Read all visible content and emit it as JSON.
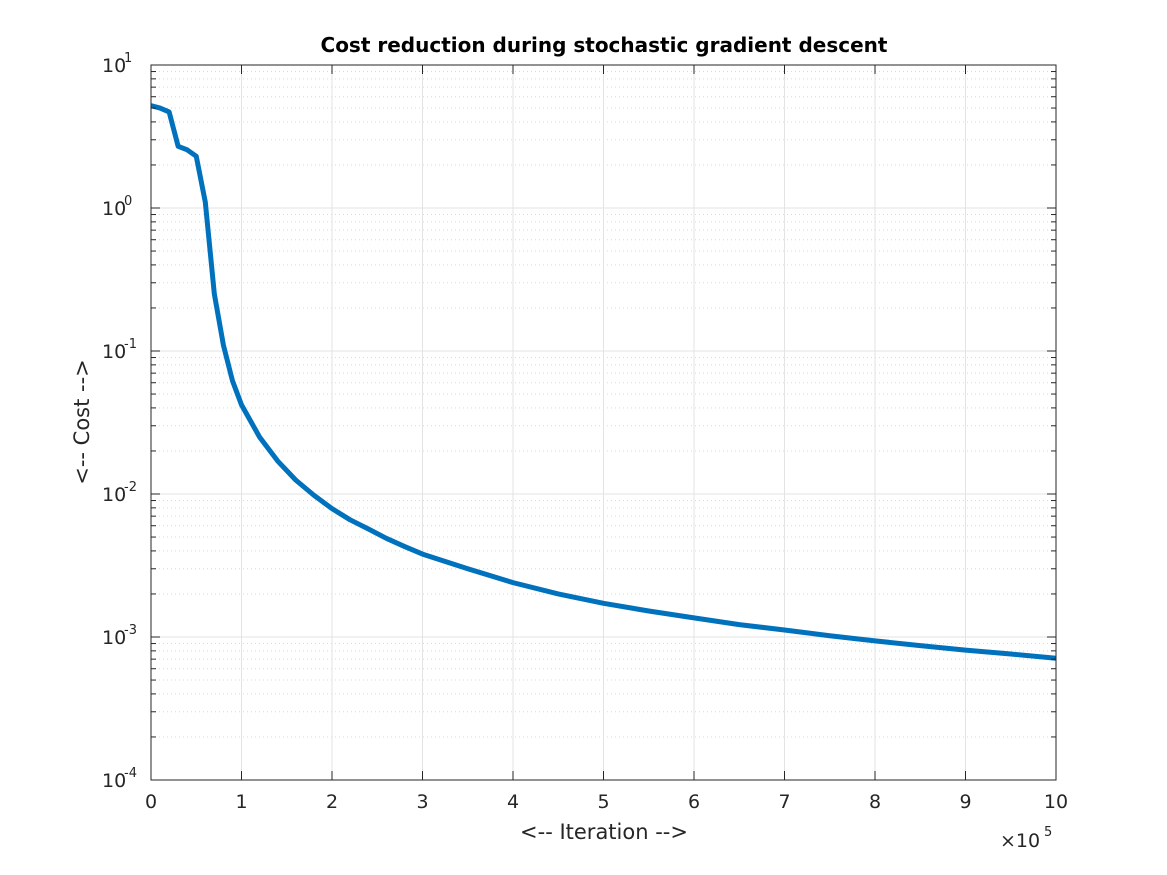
{
  "chart_data": {
    "type": "line",
    "title": "Cost reduction during stochastic gradient descent",
    "xlabel": "<-- Iteration -->",
    "ylabel": "<-- Cost -->",
    "x_multiplier_label": {
      "base": "×10",
      "exp": "5"
    },
    "xlim": [
      0,
      10
    ],
    "ylim": [
      0.0001,
      10
    ],
    "yscale": "log",
    "grid": true,
    "minor_grid": true,
    "x_ticks": [
      "0",
      "1",
      "2",
      "3",
      "4",
      "5",
      "6",
      "7",
      "8",
      "9",
      "10"
    ],
    "y_ticks": [
      {
        "base": "10",
        "exp": "-4"
      },
      {
        "base": "10",
        "exp": "-3"
      },
      {
        "base": "10",
        "exp": "-2"
      },
      {
        "base": "10",
        "exp": "-1"
      },
      {
        "base": "10",
        "exp": "0"
      },
      {
        "base": "10",
        "exp": "1"
      }
    ],
    "series": [
      {
        "color": "#0072BD",
        "x": [
          0,
          0.1,
          0.2,
          0.3,
          0.4,
          0.5,
          0.6,
          0.7,
          0.8,
          0.9,
          1.0,
          1.2,
          1.4,
          1.6,
          1.8,
          2.0,
          2.2,
          2.4,
          2.6,
          2.8,
          3.0,
          3.5,
          4.0,
          4.5,
          5.0,
          5.5,
          6.0,
          6.5,
          7.0,
          7.5,
          8.0,
          8.5,
          9.0,
          9.5,
          10.0
        ],
        "y": [
          5.2,
          5.0,
          4.7,
          2.7,
          2.55,
          2.3,
          1.1,
          0.25,
          0.11,
          0.062,
          0.042,
          0.025,
          0.017,
          0.0125,
          0.0098,
          0.0079,
          0.0066,
          0.0057,
          0.0049,
          0.0043,
          0.0038,
          0.003,
          0.0024,
          0.002,
          0.00172,
          0.00152,
          0.00136,
          0.00122,
          0.00112,
          0.00102,
          0.00094,
          0.00087,
          0.00081,
          0.00076,
          0.00071
        ]
      }
    ]
  }
}
